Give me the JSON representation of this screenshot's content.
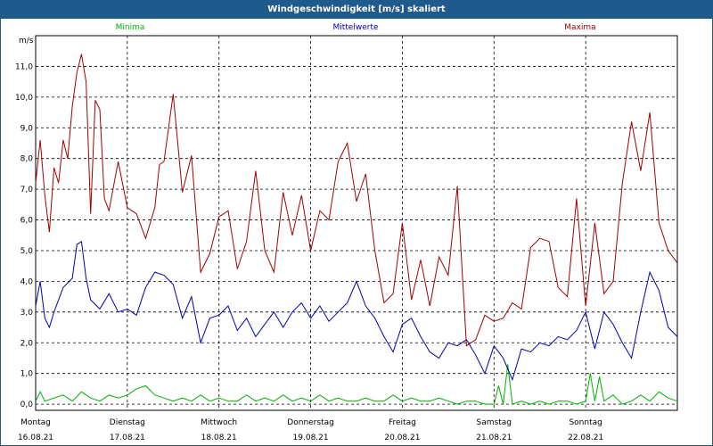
{
  "chart_data": {
    "type": "line",
    "title": "Windgeschwindigkeit [m/s] skaliert",
    "ylabel": "m/s",
    "ylim": [
      -0.2,
      12.0
    ],
    "yticks": [
      "0,0",
      "1,0",
      "2,0",
      "3,0",
      "4,0",
      "5,0",
      "6,0",
      "7,0",
      "8,0",
      "9,0",
      "10,0",
      "11,0"
    ],
    "ytick_values": [
      0,
      1,
      2,
      3,
      4,
      5,
      6,
      7,
      8,
      9,
      10,
      11
    ],
    "xlim": [
      0,
      7
    ],
    "grid": true,
    "legend_placement": "top",
    "days": [
      {
        "name": "Montag",
        "date": "16.08.21"
      },
      {
        "name": "Dienstag",
        "date": "17.08.21"
      },
      {
        "name": "Mittwoch",
        "date": "18.08.21"
      },
      {
        "name": "Donnerstag",
        "date": "19.08.21"
      },
      {
        "name": "Freitag",
        "date": "20.08.21"
      },
      {
        "name": "Samstag",
        "date": "21.08.21"
      },
      {
        "name": "Sonntag",
        "date": "22.08.21"
      }
    ],
    "series": [
      {
        "name": "Minima",
        "color": "#00b000",
        "x": [
          0,
          0.05,
          0.1,
          0.2,
          0.3,
          0.4,
          0.5,
          0.6,
          0.7,
          0.8,
          0.9,
          1.0,
          1.1,
          1.2,
          1.3,
          1.4,
          1.5,
          1.6,
          1.7,
          1.8,
          1.9,
          2.0,
          2.1,
          2.2,
          2.3,
          2.4,
          2.5,
          2.6,
          2.7,
          2.8,
          2.9,
          3.0,
          3.1,
          3.2,
          3.3,
          3.4,
          3.5,
          3.6,
          3.7,
          3.8,
          3.9,
          4.0,
          4.1,
          4.2,
          4.3,
          4.4,
          4.5,
          4.6,
          4.7,
          4.8,
          4.9,
          5.0,
          5.05,
          5.1,
          5.15,
          5.2,
          5.3,
          5.4,
          5.5,
          5.6,
          5.7,
          5.8,
          5.9,
          6.0,
          6.05,
          6.1,
          6.15,
          6.2,
          6.3,
          6.4,
          6.5,
          6.6,
          6.7,
          6.8,
          6.9,
          7.0
        ],
        "y": [
          0.1,
          0.4,
          0.1,
          0.2,
          0.3,
          0.1,
          0.4,
          0.2,
          0.1,
          0.3,
          0.2,
          0.3,
          0.5,
          0.6,
          0.3,
          0.2,
          0.1,
          0.2,
          0.1,
          0.3,
          0.1,
          0.2,
          0.1,
          0.1,
          0.3,
          0.1,
          0.2,
          0.1,
          0.3,
          0.1,
          0.2,
          0.1,
          0.3,
          0.1,
          0.2,
          0.1,
          0.1,
          0.2,
          0.1,
          0.1,
          0.3,
          0.1,
          0.2,
          0.1,
          0.1,
          0.2,
          0.1,
          0.0,
          0.1,
          0.1,
          0.0,
          0.0,
          0.6,
          0.0,
          1.3,
          0.0,
          0.1,
          0.0,
          0.1,
          0.0,
          0.1,
          0.1,
          0.0,
          0.1,
          1.0,
          0.1,
          0.9,
          0.1,
          0.3,
          0.0,
          0.1,
          0.3,
          0.1,
          0.4,
          0.2,
          0.1
        ]
      },
      {
        "name": "Mittelwerte",
        "color": "#0000b0",
        "x": [
          0,
          0.05,
          0.1,
          0.15,
          0.2,
          0.3,
          0.4,
          0.45,
          0.5,
          0.55,
          0.6,
          0.7,
          0.8,
          0.9,
          1.0,
          1.1,
          1.2,
          1.3,
          1.4,
          1.5,
          1.6,
          1.7,
          1.8,
          1.9,
          2.0,
          2.1,
          2.2,
          2.3,
          2.4,
          2.5,
          2.6,
          2.7,
          2.8,
          2.9,
          3.0,
          3.1,
          3.2,
          3.3,
          3.4,
          3.5,
          3.6,
          3.7,
          3.8,
          3.9,
          4.0,
          4.1,
          4.2,
          4.3,
          4.4,
          4.5,
          4.6,
          4.7,
          4.8,
          4.9,
          5.0,
          5.1,
          5.2,
          5.3,
          5.4,
          5.5,
          5.6,
          5.7,
          5.8,
          5.9,
          6.0,
          6.1,
          6.2,
          6.3,
          6.4,
          6.5,
          6.6,
          6.7,
          6.8,
          6.9,
          7.0
        ],
        "y": [
          3.2,
          4.0,
          2.8,
          2.5,
          3.0,
          3.8,
          4.1,
          5.2,
          5.3,
          4.1,
          3.4,
          3.1,
          3.6,
          3.0,
          3.1,
          2.9,
          3.8,
          4.3,
          4.2,
          3.9,
          2.8,
          3.5,
          2.0,
          2.8,
          2.9,
          3.2,
          2.4,
          2.8,
          2.2,
          2.6,
          3.0,
          2.5,
          3.0,
          3.3,
          2.8,
          3.2,
          2.7,
          3.0,
          3.3,
          4.0,
          3.2,
          2.8,
          2.2,
          1.7,
          2.6,
          2.8,
          2.2,
          1.7,
          1.5,
          2.0,
          1.9,
          2.1,
          1.6,
          1.0,
          1.9,
          1.5,
          0.8,
          1.8,
          1.7,
          2.0,
          1.9,
          2.2,
          2.1,
          2.4,
          3.0,
          1.8,
          3.0,
          2.6,
          2.0,
          1.5,
          3.0,
          4.3,
          3.7,
          2.5,
          2.2
        ]
      },
      {
        "name": "Maxima",
        "color": "#a00000",
        "x": [
          0,
          0.05,
          0.1,
          0.15,
          0.2,
          0.25,
          0.3,
          0.35,
          0.4,
          0.45,
          0.5,
          0.55,
          0.6,
          0.65,
          0.7,
          0.75,
          0.8,
          0.9,
          1.0,
          1.1,
          1.2,
          1.3,
          1.35,
          1.4,
          1.5,
          1.6,
          1.7,
          1.8,
          1.9,
          2.0,
          2.1,
          2.2,
          2.3,
          2.4,
          2.5,
          2.6,
          2.7,
          2.8,
          2.9,
          3.0,
          3.1,
          3.2,
          3.3,
          3.4,
          3.5,
          3.6,
          3.7,
          3.8,
          3.9,
          4.0,
          4.1,
          4.2,
          4.3,
          4.4,
          4.5,
          4.6,
          4.7,
          4.8,
          4.9,
          5.0,
          5.1,
          5.2,
          5.3,
          5.4,
          5.5,
          5.6,
          5.7,
          5.8,
          5.9,
          6.0,
          6.1,
          6.2,
          6.3,
          6.4,
          6.5,
          6.6,
          6.7,
          6.8,
          6.9,
          7.0
        ],
        "y": [
          7.2,
          8.6,
          6.8,
          5.6,
          7.7,
          7.2,
          8.6,
          8.0,
          9.7,
          10.8,
          11.4,
          10.5,
          6.2,
          9.9,
          9.6,
          6.7,
          6.3,
          7.9,
          6.4,
          6.2,
          5.4,
          6.4,
          7.8,
          7.9,
          10.1,
          6.9,
          8.1,
          4.3,
          4.9,
          6.1,
          6.3,
          4.4,
          5.3,
          7.6,
          5.0,
          4.3,
          6.9,
          5.5,
          6.8,
          5.0,
          6.3,
          6.0,
          7.9,
          8.5,
          6.6,
          7.5,
          5.0,
          3.3,
          3.6,
          5.9,
          3.4,
          4.7,
          3.2,
          4.8,
          4.2,
          7.1,
          1.9,
          2.1,
          2.9,
          2.7,
          2.8,
          3.3,
          3.1,
          5.1,
          5.4,
          5.3,
          3.8,
          3.5,
          6.7,
          3.2,
          5.9,
          3.6,
          4.0,
          7.2,
          9.2,
          7.6,
          9.5,
          5.9,
          5.0,
          4.6
        ]
      }
    ]
  }
}
